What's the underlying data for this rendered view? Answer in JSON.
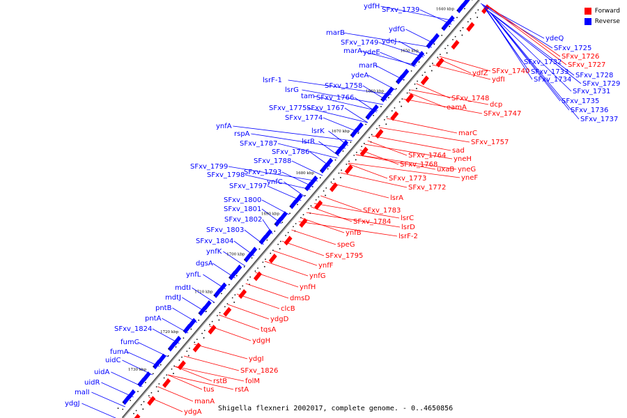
{
  "caption": "Shigella flexneri 2002017, complete genome. - 0..4650856",
  "legend": [
    {
      "label": "Forward",
      "color": "#ff0000"
    },
    {
      "label": "Reverse",
      "color": "#0000ff"
    }
  ],
  "colors": {
    "forward": "#ff0000",
    "reverse": "#0000ff",
    "backbone": "#888888"
  },
  "ticks": [
    "1640 kbp",
    "1650 kbp",
    "1660 kbp",
    "1670 kbp",
    "1680 kbp",
    "1690 kbp",
    "1700 kbp",
    "1710 kbp",
    "1720 kbp",
    "1730 kbp"
  ],
  "reverse_labels": [
    "ydfH",
    "SFxv_1739",
    "marB",
    "SFxv_1749",
    "ydfG",
    "ydeJ",
    "marA",
    "ydeE",
    "marR",
    "ydeA",
    "lsrF-1",
    "SFxv_1758",
    "lsrG",
    "tam",
    "SFxv_1766",
    "SFxv_1775",
    "SFxv_1767",
    "SFxv_1774",
    "ynfA",
    "lsrK",
    "rspA",
    "lsrR",
    "SFxv_1787",
    "SFxv_1786",
    "SFxv_1788",
    "SFxv_1799",
    "SFxv_1793",
    "SFxv_1798",
    "ynfC",
    "SFxv_1797",
    "SFxv_1800",
    "SFxv_1801",
    "SFxv_1802",
    "SFxv_1803",
    "SFxv_1804",
    "ynfK",
    "dgsA",
    "ynfL",
    "mdtI",
    "mdtJ",
    "pntB",
    "pntA",
    "SFxv_1824",
    "fumC",
    "fumA",
    "uidC",
    "uidA",
    "uidR",
    "malI",
    "ydgJ",
    "ydeQ",
    "SFxv_1725",
    "SFxv_1732",
    "SFxv_1733",
    "SFxv_1734",
    "SFxv_1728",
    "SFxv_1729",
    "SFxv_1731",
    "SFxv_1735",
    "SFxv_1736",
    "SFxv_1737"
  ],
  "forward_labels": [
    "SFxv_1726",
    "SFxv_1727",
    "SFxv_1740",
    "ydfZ",
    "ydfI",
    "SFxv_1748",
    "dcp",
    "eamA",
    "SFxv_1747",
    "marC",
    "SFxv_1757",
    "sad",
    "SFxv_1764",
    "yneH",
    "SFxv_1768",
    "uxaB",
    "yneG",
    "yneF",
    "SFxv_1773",
    "SFxv_1772",
    "lsrA",
    "SFxv_1783",
    "lsrC",
    "SFxv_1784",
    "lsrD",
    "lsrF-2",
    "ynfB",
    "speG",
    "SFxv_1795",
    "ynfF",
    "ynfG",
    "ynfH",
    "dmsD",
    "clcB",
    "ydgD",
    "tqsA",
    "ydgH",
    "ydgI",
    "SFxv_1826",
    "folM",
    "rstB",
    "rstA",
    "tus",
    "manA",
    "ydgA"
  ]
}
